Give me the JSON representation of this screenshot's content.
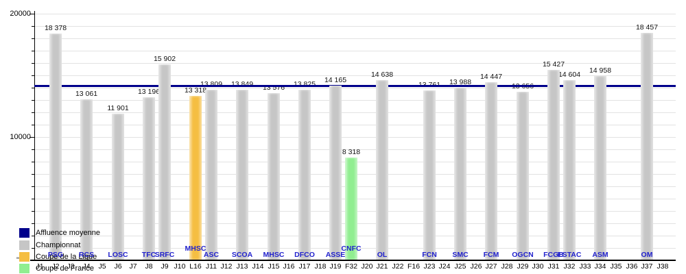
{
  "chart_data": {
    "type": "bar",
    "title": "",
    "ylabel": "",
    "xlabel": "",
    "ylim": [
      0,
      20000
    ],
    "grid": "horizontal, every 1000",
    "legend_position": "bottom-left, overlapping plot",
    "y_axis": {
      "labels": [
        {
          "text": "10000",
          "value": 10000
        },
        {
          "text": "20000",
          "value": 20000
        }
      ]
    },
    "average_line": {
      "legend_label": "Affluence moyenne",
      "value": 14154
    },
    "slots": [
      "J1",
      "J2",
      "J3",
      "J4",
      "J5",
      "J6",
      "J7",
      "J8",
      "J9",
      "J10",
      "L16",
      "J11",
      "J12",
      "J13",
      "J14",
      "J15",
      "J16",
      "J17",
      "J18",
      "J19",
      "F32",
      "J20",
      "J21",
      "J22",
      "F16",
      "J23",
      "J24",
      "J25",
      "J26",
      "J27",
      "J28",
      "J29",
      "J30",
      "J31",
      "J32",
      "J33",
      "J34",
      "J35",
      "J36",
      "J37",
      "J38"
    ],
    "bars": [
      {
        "slot": "J2",
        "club": "PSG",
        "value": 18378,
        "value_label": "18 378",
        "category": "championnat",
        "club_raised": false
      },
      {
        "slot": "J4",
        "club": "RCS",
        "value": 13061,
        "value_label": "13 061",
        "category": "championnat",
        "club_raised": false
      },
      {
        "slot": "J6",
        "club": "LOSC",
        "value": 11901,
        "value_label": "11 901",
        "category": "championnat",
        "club_raised": false
      },
      {
        "slot": "J8",
        "club": "TFC",
        "value": 13196,
        "value_label": "13 196",
        "category": "championnat",
        "club_raised": false
      },
      {
        "slot": "J9",
        "club": "SRFC",
        "value": 15902,
        "value_label": "15 902",
        "category": "championnat",
        "club_raised": false
      },
      {
        "slot": "L16",
        "club": "MHSC",
        "value": 13318,
        "value_label": "13 318",
        "category": "coupe_ligue",
        "club_raised": true
      },
      {
        "slot": "J11",
        "club": "ASC",
        "value": 13809,
        "value_label": "13 809",
        "category": "championnat",
        "club_raised": false
      },
      {
        "slot": "J13",
        "club": "SCOA",
        "value": 13849,
        "value_label": "13 849",
        "category": "championnat",
        "club_raised": false
      },
      {
        "slot": "J15",
        "club": "MHSC",
        "value": 13576,
        "value_label": "13 576",
        "category": "championnat",
        "club_raised": false
      },
      {
        "slot": "J17",
        "club": "DFCO",
        "value": 13825,
        "value_label": "13 825",
        "category": "championnat",
        "club_raised": false
      },
      {
        "slot": "J19",
        "club": "ASSE",
        "value": 14165,
        "value_label": "14 165",
        "category": "championnat",
        "club_raised": false
      },
      {
        "slot": "F32",
        "club": "CNFC",
        "value": 8318,
        "value_label": "8 318",
        "category": "coupe_france",
        "club_raised": true
      },
      {
        "slot": "J21",
        "club": "OL",
        "value": 14638,
        "value_label": "14 638",
        "category": "championnat",
        "club_raised": false
      },
      {
        "slot": "J23",
        "club": "FCN",
        "value": 13761,
        "value_label": "13 761",
        "category": "championnat",
        "club_raised": false
      },
      {
        "slot": "J25",
        "club": "SMC",
        "value": 13988,
        "value_label": "13 988",
        "category": "championnat",
        "club_raised": false
      },
      {
        "slot": "J27",
        "club": "FCM",
        "value": 14447,
        "value_label": "14 447",
        "category": "championnat",
        "club_raised": false
      },
      {
        "slot": "J29",
        "club": "OGCN",
        "value": 13656,
        "value_label": "13 656",
        "category": "championnat",
        "club_raised": false
      },
      {
        "slot": "J31",
        "club": "FCGB",
        "value": 15427,
        "value_label": "15 427",
        "category": "championnat",
        "club_raised": false
      },
      {
        "slot": "J32",
        "club": "ESTAC",
        "value": 14604,
        "value_label": "14 604",
        "category": "championnat",
        "club_raised": false
      },
      {
        "slot": "J34",
        "club": "ASM",
        "value": 14958,
        "value_label": "14 958",
        "category": "championnat",
        "club_raised": false
      },
      {
        "slot": "J37",
        "club": "OM",
        "value": 18457,
        "value_label": "18 457",
        "category": "championnat",
        "club_raised": false
      }
    ],
    "legend": [
      {
        "key": "moyenne",
        "label": "Affluence moyenne"
      },
      {
        "key": "championnat",
        "label": "Championnat"
      },
      {
        "key": "coupe_ligue",
        "label": "Coupe de la Ligue"
      },
      {
        "key": "coupe_france",
        "label": "Coupe de France"
      }
    ]
  },
  "colors": {
    "moyenne": "#00008B",
    "championnat": "#C6C6C6",
    "coupe_ligue": "#F5BE42",
    "coupe_france": "#90EE90",
    "club_label": "#2222CD",
    "gridline": "#E2E2E2",
    "axis": "#000000"
  },
  "stray_mark": "\""
}
